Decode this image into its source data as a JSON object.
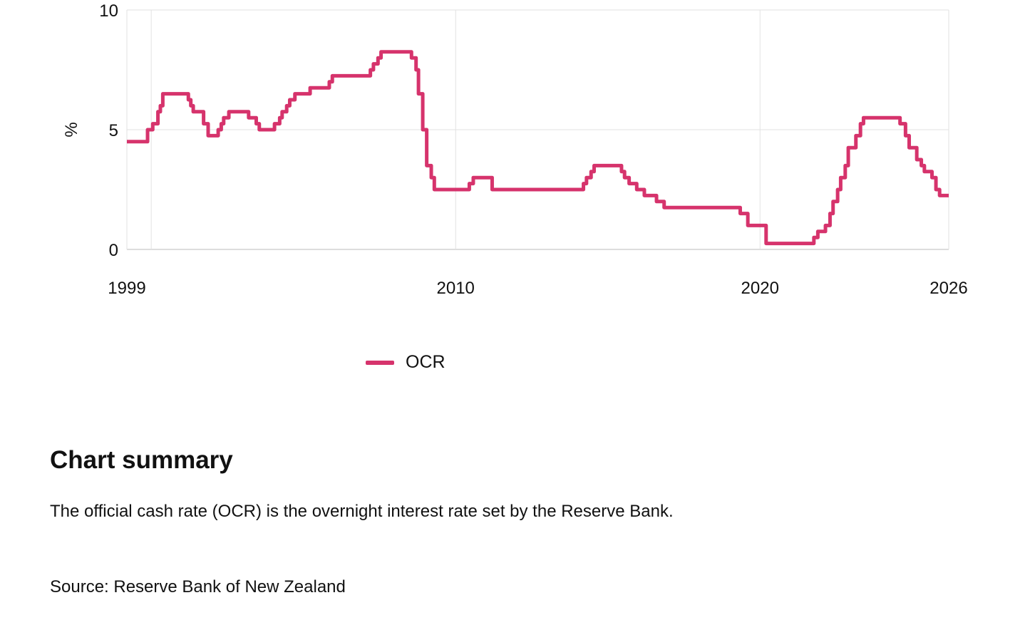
{
  "chart_data": {
    "type": "line",
    "step": true,
    "ylabel": "%",
    "xlabel": "",
    "ylim": [
      0,
      10
    ],
    "xlim": [
      1999.2,
      2026.2
    ],
    "yticks": [
      0,
      5,
      10
    ],
    "xtick_labels": [
      {
        "label": "1999",
        "value": 1999.2
      },
      {
        "label": "2010",
        "value": 2010
      },
      {
        "label": "2020",
        "value": 2020
      },
      {
        "label": "2026",
        "value": 2026.2
      }
    ],
    "x_gridlines": [
      2000,
      2010,
      2020,
      2026.2
    ],
    "grid": true,
    "legend_position": "bottom",
    "series": [
      {
        "name": "OCR",
        "color": "#d6336c",
        "points": [
          [
            1999.2,
            4.5
          ],
          [
            1999.88,
            5.0
          ],
          [
            2000.05,
            5.25
          ],
          [
            2000.22,
            5.75
          ],
          [
            2000.3,
            6.0
          ],
          [
            2000.38,
            6.5
          ],
          [
            2001.22,
            6.25
          ],
          [
            2001.3,
            6.0
          ],
          [
            2001.38,
            5.75
          ],
          [
            2001.72,
            5.25
          ],
          [
            2001.87,
            4.75
          ],
          [
            2002.2,
            5.0
          ],
          [
            2002.3,
            5.25
          ],
          [
            2002.38,
            5.5
          ],
          [
            2002.55,
            5.75
          ],
          [
            2003.2,
            5.5
          ],
          [
            2003.45,
            5.25
          ],
          [
            2003.55,
            5.0
          ],
          [
            2004.05,
            5.25
          ],
          [
            2004.22,
            5.5
          ],
          [
            2004.3,
            5.75
          ],
          [
            2004.45,
            6.0
          ],
          [
            2004.55,
            6.25
          ],
          [
            2004.72,
            6.5
          ],
          [
            2005.22,
            6.75
          ],
          [
            2005.85,
            7.0
          ],
          [
            2005.95,
            7.25
          ],
          [
            2007.2,
            7.5
          ],
          [
            2007.3,
            7.75
          ],
          [
            2007.45,
            8.0
          ],
          [
            2007.55,
            8.25
          ],
          [
            2008.55,
            8.0
          ],
          [
            2008.7,
            7.5
          ],
          [
            2008.78,
            6.5
          ],
          [
            2008.92,
            5.0
          ],
          [
            2009.05,
            3.5
          ],
          [
            2009.2,
            3.0
          ],
          [
            2009.3,
            2.5
          ],
          [
            2010.45,
            2.75
          ],
          [
            2010.58,
            3.0
          ],
          [
            2011.2,
            2.5
          ],
          [
            2014.2,
            2.75
          ],
          [
            2014.3,
            3.0
          ],
          [
            2014.45,
            3.25
          ],
          [
            2014.55,
            3.5
          ],
          [
            2015.45,
            3.25
          ],
          [
            2015.55,
            3.0
          ],
          [
            2015.7,
            2.75
          ],
          [
            2015.95,
            2.5
          ],
          [
            2016.2,
            2.25
          ],
          [
            2016.6,
            2.0
          ],
          [
            2016.85,
            1.75
          ],
          [
            2019.35,
            1.5
          ],
          [
            2019.6,
            1.0
          ],
          [
            2020.2,
            0.25
          ],
          [
            2021.77,
            0.5
          ],
          [
            2021.9,
            0.75
          ],
          [
            2022.15,
            1.0
          ],
          [
            2022.3,
            1.5
          ],
          [
            2022.4,
            2.0
          ],
          [
            2022.55,
            2.5
          ],
          [
            2022.65,
            3.0
          ],
          [
            2022.8,
            3.5
          ],
          [
            2022.9,
            4.25
          ],
          [
            2023.15,
            4.75
          ],
          [
            2023.3,
            5.25
          ],
          [
            2023.4,
            5.5
          ],
          [
            2024.6,
            5.25
          ],
          [
            2024.78,
            4.75
          ],
          [
            2024.9,
            4.25
          ],
          [
            2025.15,
            3.75
          ],
          [
            2025.3,
            3.5
          ],
          [
            2025.4,
            3.25
          ],
          [
            2025.65,
            3.0
          ],
          [
            2025.78,
            2.5
          ],
          [
            2025.9,
            2.25
          ],
          [
            2026.2,
            2.25
          ]
        ]
      }
    ]
  },
  "legend": {
    "label": "OCR"
  },
  "summary": {
    "heading": "Chart summary",
    "text": "The official cash rate (OCR) is the overnight interest rate set by the Reserve Bank."
  },
  "source": "Source: Reserve Bank of New Zealand"
}
